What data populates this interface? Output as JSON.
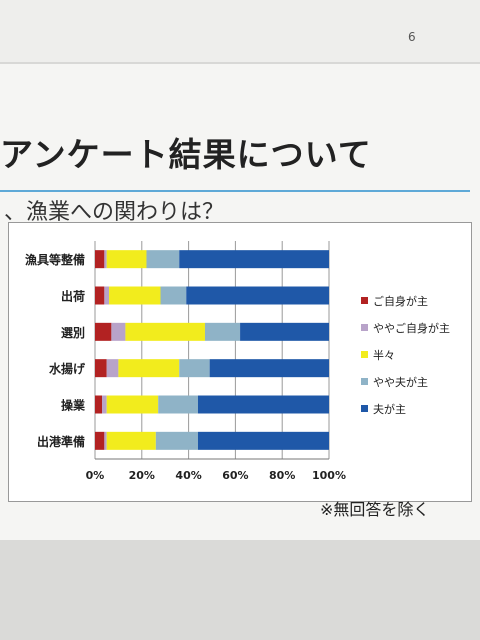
{
  "page": {
    "number": "6",
    "title": "アンケート結果について",
    "subtitle": "、漁業への関わりは？",
    "note": "※無回答を除く"
  },
  "chart_data": {
    "type": "bar",
    "orientation": "horizontal",
    "stacked": "percent",
    "categories": [
      "漁具等整備",
      "出荷",
      "選別",
      "水揚げ",
      "操業",
      "出港準備"
    ],
    "series": [
      {
        "name": "ご自身が主",
        "color": "#b22222",
        "values": [
          4,
          4,
          7,
          5,
          3,
          4
        ]
      },
      {
        "name": "ややご自身が主",
        "color": "#b8a3c9",
        "values": [
          1,
          2,
          6,
          5,
          2,
          1
        ]
      },
      {
        "name": "半々",
        "color": "#f2ec1d",
        "values": [
          17,
          22,
          34,
          26,
          22,
          21
        ]
      },
      {
        "name": "やや夫が主",
        "color": "#8fb3c7",
        "values": [
          14,
          11,
          15,
          13,
          17,
          18
        ]
      },
      {
        "name": "夫が主",
        "color": "#1f58a8",
        "values": [
          64,
          61,
          38,
          51,
          56,
          56
        ]
      }
    ],
    "xaxis": {
      "ticks": [
        "0%",
        "20%",
        "40%",
        "60%",
        "80%",
        "100%"
      ],
      "range": [
        0,
        100
      ]
    },
    "grid": true,
    "legend_position": "right"
  }
}
